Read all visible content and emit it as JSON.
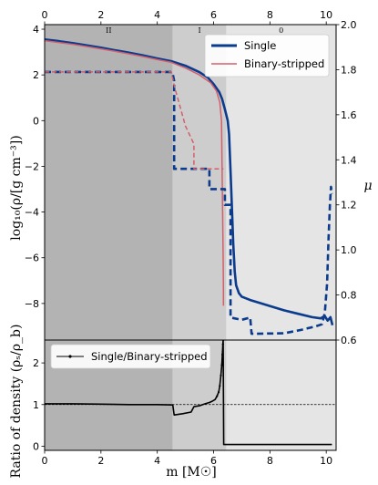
{
  "colors": {
    "single": "#0b3b8c",
    "binary": "#d35f6b",
    "zone_II": "#b3b3b3",
    "zone_I": "#cdcdcd",
    "zone_0": "#e5e5e5",
    "ratio": "#000000"
  },
  "chart_data": [
    {
      "type": "line",
      "panel": "top",
      "ylabel": "log₁₀(ρ/[g cm⁻³])",
      "y2label": "μ",
      "xlim": [
        0,
        10.35
      ],
      "ylim": [
        -9.6,
        4.2
      ],
      "y2lim": [
        0.6,
        2.0
      ],
      "x_ticks_top": [
        "0",
        "2",
        "4",
        "6",
        "8",
        "10"
      ],
      "y_ticks": [
        "4",
        "2",
        "0",
        "−2",
        "−4",
        "−6",
        "−8"
      ],
      "y2_ticks": [
        "2.0",
        "1.8",
        "1.6",
        "1.4",
        "1.2",
        "1.0",
        "0.8",
        "0.6"
      ],
      "zones": [
        {
          "label": "II",
          "x0": 0,
          "x1": 4.55
        },
        {
          "label": "I",
          "x0": 4.55,
          "x1": 6.45
        },
        {
          "label": "0",
          "x0": 6.45,
          "x1": 10.35
        }
      ],
      "legend": {
        "position": "top-right",
        "entries": [
          "Single",
          "Binary-stripped"
        ]
      },
      "series": [
        {
          "name": "Single",
          "style": "solid",
          "axis": "left",
          "points": [
            [
              0,
              3.55
            ],
            [
              0.5,
              3.48
            ],
            [
              1,
              3.39
            ],
            [
              1.5,
              3.29
            ],
            [
              2,
              3.19
            ],
            [
              2.5,
              3.08
            ],
            [
              3,
              2.97
            ],
            [
              3.5,
              2.85
            ],
            [
              4,
              2.72
            ],
            [
              4.5,
              2.6
            ],
            [
              5,
              2.4
            ],
            [
              5.5,
              2.12
            ],
            [
              5.8,
              1.88
            ],
            [
              6.0,
              1.6
            ],
            [
              6.2,
              1.25
            ],
            [
              6.3,
              0.95
            ],
            [
              6.4,
              0.5
            ],
            [
              6.5,
              0.0
            ],
            [
              6.55,
              -0.6
            ],
            [
              6.6,
              -2.2
            ],
            [
              6.65,
              -3.8
            ],
            [
              6.7,
              -5.4
            ],
            [
              6.75,
              -6.6
            ],
            [
              6.8,
              -7.2
            ],
            [
              6.9,
              -7.55
            ],
            [
              7.0,
              -7.7
            ],
            [
              7.3,
              -7.85
            ],
            [
              7.7,
              -8.0
            ],
            [
              8.1,
              -8.15
            ],
            [
              8.5,
              -8.3
            ],
            [
              9.0,
              -8.45
            ],
            [
              9.5,
              -8.6
            ],
            [
              9.8,
              -8.65
            ],
            [
              9.95,
              -8.55
            ],
            [
              10.05,
              -8.75
            ],
            [
              10.15,
              -8.6
            ],
            [
              10.22,
              -8.95
            ]
          ]
        },
        {
          "name": "Binary-stripped",
          "style": "solid",
          "axis": "left",
          "points": [
            [
              0,
              3.5
            ],
            [
              0.5,
              3.42
            ],
            [
              1,
              3.34
            ],
            [
              1.5,
              3.24
            ],
            [
              2,
              3.14
            ],
            [
              2.5,
              3.03
            ],
            [
              3,
              2.92
            ],
            [
              3.5,
              2.8
            ],
            [
              4,
              2.67
            ],
            [
              4.5,
              2.55
            ],
            [
              5,
              2.3
            ],
            [
              5.5,
              2.0
            ],
            [
              5.9,
              1.65
            ],
            [
              6.1,
              1.3
            ],
            [
              6.22,
              0.8
            ],
            [
              6.28,
              0.0
            ],
            [
              6.3,
              -2.0
            ],
            [
              6.32,
              -4.0
            ],
            [
              6.34,
              -6.0
            ],
            [
              6.35,
              -7.4
            ],
            [
              6.35,
              -8.1
            ]
          ]
        },
        {
          "name": "Single",
          "style": "dashed",
          "axis": "right",
          "points": [
            [
              0,
              1.79
            ],
            [
              4.5,
              1.79
            ],
            [
              4.55,
              1.78
            ],
            [
              4.6,
              1.75
            ],
            [
              4.6,
              1.36
            ],
            [
              5.85,
              1.36
            ],
            [
              5.85,
              1.27
            ],
            [
              6.4,
              1.27
            ],
            [
              6.4,
              1.2
            ],
            [
              6.6,
              1.2
            ],
            [
              6.6,
              0.7
            ],
            [
              7.0,
              0.69
            ],
            [
              7.3,
              0.7
            ],
            [
              7.35,
              0.628
            ],
            [
              8.5,
              0.63
            ],
            [
              9.1,
              0.645
            ],
            [
              9.6,
              0.66
            ],
            [
              9.85,
              0.67
            ],
            [
              9.95,
              0.72
            ],
            [
              10.03,
              0.85
            ],
            [
              10.08,
              1.05
            ],
            [
              10.13,
              1.2
            ],
            [
              10.17,
              1.28
            ],
            [
              10.2,
              1.25
            ]
          ]
        },
        {
          "name": "Binary-stripped",
          "style": "dashed",
          "axis": "right",
          "points": [
            [
              0,
              1.79
            ],
            [
              4.5,
              1.79
            ],
            [
              4.6,
              1.73
            ],
            [
              5.0,
              1.55
            ],
            [
              5.3,
              1.47
            ],
            [
              5.3,
              1.36
            ],
            [
              6.35,
              1.36
            ]
          ]
        }
      ]
    },
    {
      "type": "line",
      "panel": "bottom",
      "xlabel": "m [M☉]",
      "ylabel": "Ratio of density (ρₛ/ρ_b)",
      "xlim": [
        0,
        10.35
      ],
      "ylim": [
        -0.1,
        2.55
      ],
      "x_ticks": [
        "0",
        "2",
        "4",
        "6",
        "8",
        "10"
      ],
      "y_ticks": [
        "0",
        "1",
        "2"
      ],
      "reference_line": {
        "y": 1,
        "style": "dashed"
      },
      "legend": {
        "position": "top-left",
        "entries": [
          "Single/Binary-stripped"
        ]
      },
      "series": [
        {
          "name": "Single/Binary-stripped",
          "points": [
            [
              0,
              1.02
            ],
            [
              1,
              1.02
            ],
            [
              2,
              1.01
            ],
            [
              3,
              1.0
            ],
            [
              4,
              1.0
            ],
            [
              4.55,
              0.99
            ],
            [
              4.6,
              0.75
            ],
            [
              4.9,
              0.78
            ],
            [
              5.2,
              0.82
            ],
            [
              5.3,
              0.95
            ],
            [
              5.5,
              0.97
            ],
            [
              5.7,
              1.02
            ],
            [
              5.85,
              1.05
            ],
            [
              5.95,
              1.08
            ],
            [
              6.05,
              1.12
            ],
            [
              6.12,
              1.2
            ],
            [
              6.18,
              1.3
            ],
            [
              6.22,
              1.45
            ],
            [
              6.26,
              1.7
            ],
            [
              6.29,
              1.95
            ],
            [
              6.31,
              2.2
            ],
            [
              6.33,
              2.45
            ],
            [
              6.34,
              2.55
            ],
            [
              6.36,
              0.04
            ],
            [
              7,
              0.04
            ],
            [
              8,
              0.04
            ],
            [
              9,
              0.04
            ],
            [
              10.2,
              0.04
            ]
          ]
        }
      ]
    }
  ]
}
